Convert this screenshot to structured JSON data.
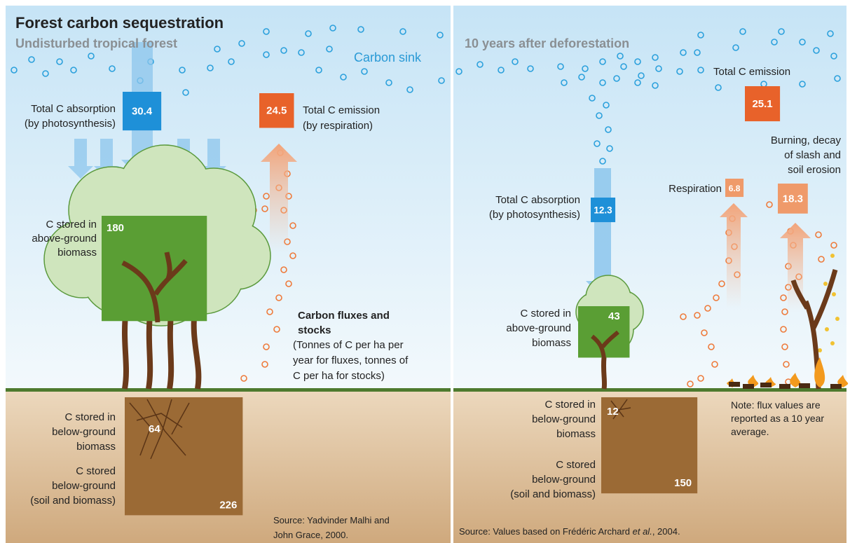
{
  "title": "Forest carbon sequestration",
  "panels": [
    {
      "subtitle": "Undisturbed tropical forest",
      "sink_label": "Carbon sink",
      "fluxes": [
        {
          "label": [
            "Total C absorption",
            "(by photosynthesis)"
          ],
          "value": 30.4
        },
        {
          "label": [
            "Total C emission",
            "(by respiration)"
          ],
          "value": 24.5
        }
      ],
      "stocks": [
        {
          "label": [
            "C stored in",
            "above-ground",
            "biomass"
          ],
          "value": 180
        },
        {
          "label": [
            "C stored in",
            "below-ground",
            "biomass"
          ],
          "value": 64
        },
        {
          "label": [
            "C stored",
            "below-ground",
            "(soil and biomass)"
          ],
          "value": 226
        }
      ],
      "legend": {
        "title": [
          "Carbon fluxes and",
          "stocks"
        ],
        "text": [
          "(Tonnes of C per ha per",
          "year for fluxes, tonnes of",
          "C per ha for stocks)"
        ]
      },
      "source": [
        "Source: Yadvinder Malhi and",
        "John Grace,  2000."
      ]
    },
    {
      "subtitle": "10 years after deforestation",
      "fluxes": [
        {
          "label": [
            "Total C absorption",
            "(by photosynthesis)"
          ],
          "value": 12.3
        },
        {
          "label": [
            "Total C emission"
          ],
          "value": 25.1
        },
        {
          "label": [
            "Respiration"
          ],
          "value": 6.8
        },
        {
          "label": [
            "Burning, decay",
            "of slash and",
            "soil erosion"
          ],
          "value": 18.3
        }
      ],
      "stocks": [
        {
          "label": [
            "C stored in",
            "above-ground",
            "biomass"
          ],
          "value": 43
        },
        {
          "label": [
            "C stored in",
            "below-ground",
            "biomass"
          ],
          "value": 12
        },
        {
          "label": [
            "C stored",
            "below-ground",
            "(soil and biomass)"
          ],
          "value": 150
        }
      ],
      "note": [
        "Note: flux values are",
        "reported as a 10 year",
        "average."
      ],
      "source": [
        "Source: Values based on Frédéric Archard ",
        "et al.",
        ", 2004."
      ]
    }
  ]
}
